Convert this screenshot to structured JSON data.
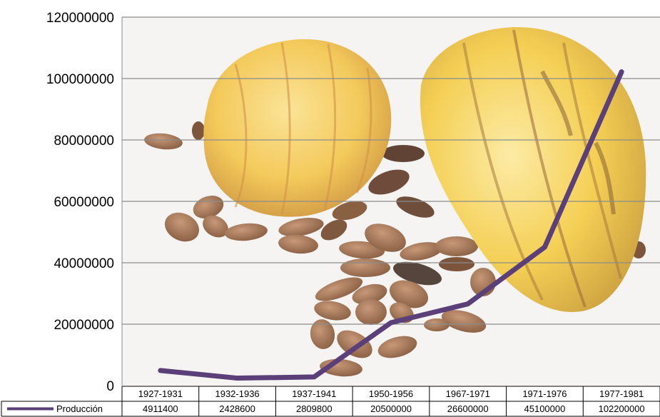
{
  "chart_data": {
    "type": "line",
    "categories": [
      "1927-1931",
      "1932-1936",
      "1937-1941",
      "1950-1956",
      "1967-1971",
      "1971-1976",
      "1977-1981"
    ],
    "series": [
      {
        "name": "Producción",
        "values": [
          4911400,
          2428600,
          2809800,
          20500000,
          26600000,
          45100000,
          102200000
        ],
        "color": "#5b3f78"
      }
    ],
    "ylim": [
      0,
      120000000
    ],
    "yticks": [
      "0",
      "20000000",
      "40000000",
      "60000000",
      "80000000",
      "100000000",
      "120000000"
    ],
    "grid": true,
    "legend": "data-table",
    "background": "cocoa-pods-photo",
    "colors": {
      "gridline": "#8c8c8c",
      "pod_yellow": "#f2c63a",
      "pod_dark": "#7a4a1c",
      "bean": "#8a5530"
    }
  }
}
